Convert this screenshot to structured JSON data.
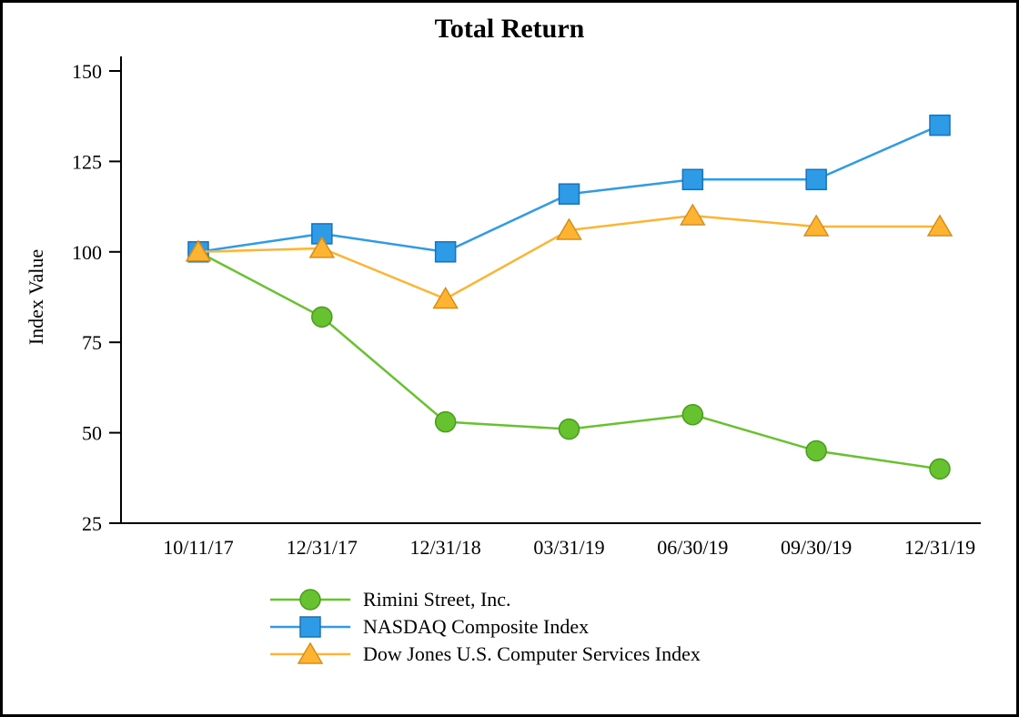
{
  "chart_data": {
    "type": "line",
    "title": "Total Return",
    "ylabel": "Index Value",
    "categories": [
      "10/11/17",
      "12/31/17",
      "12/31/18",
      "03/31/19",
      "06/30/19",
      "09/30/19",
      "12/31/19"
    ],
    "y_ticks": [
      25,
      50,
      75,
      100,
      125,
      150
    ],
    "ylim": [
      25,
      150
    ],
    "grid": false,
    "legend_position": "bottom",
    "series": [
      {
        "name": "Rimini Street, Inc.",
        "marker": "circle",
        "color": "#66C22E",
        "edge_color": "#4C9A1F",
        "values": [
          100,
          82,
          53,
          51,
          55,
          45,
          40
        ]
      },
      {
        "name": "NASDAQ Composite Index",
        "marker": "square",
        "color": "#2D9BE5",
        "edge_color": "#1C72B5",
        "values": [
          100,
          105,
          100,
          116,
          120,
          120,
          135
        ]
      },
      {
        "name": "Dow Jones U.S. Computer Services Index",
        "marker": "triangle",
        "color": "#FFB431",
        "edge_color": "#D68E18",
        "values": [
          100,
          101,
          87,
          106,
          110,
          107,
          107
        ]
      }
    ]
  }
}
